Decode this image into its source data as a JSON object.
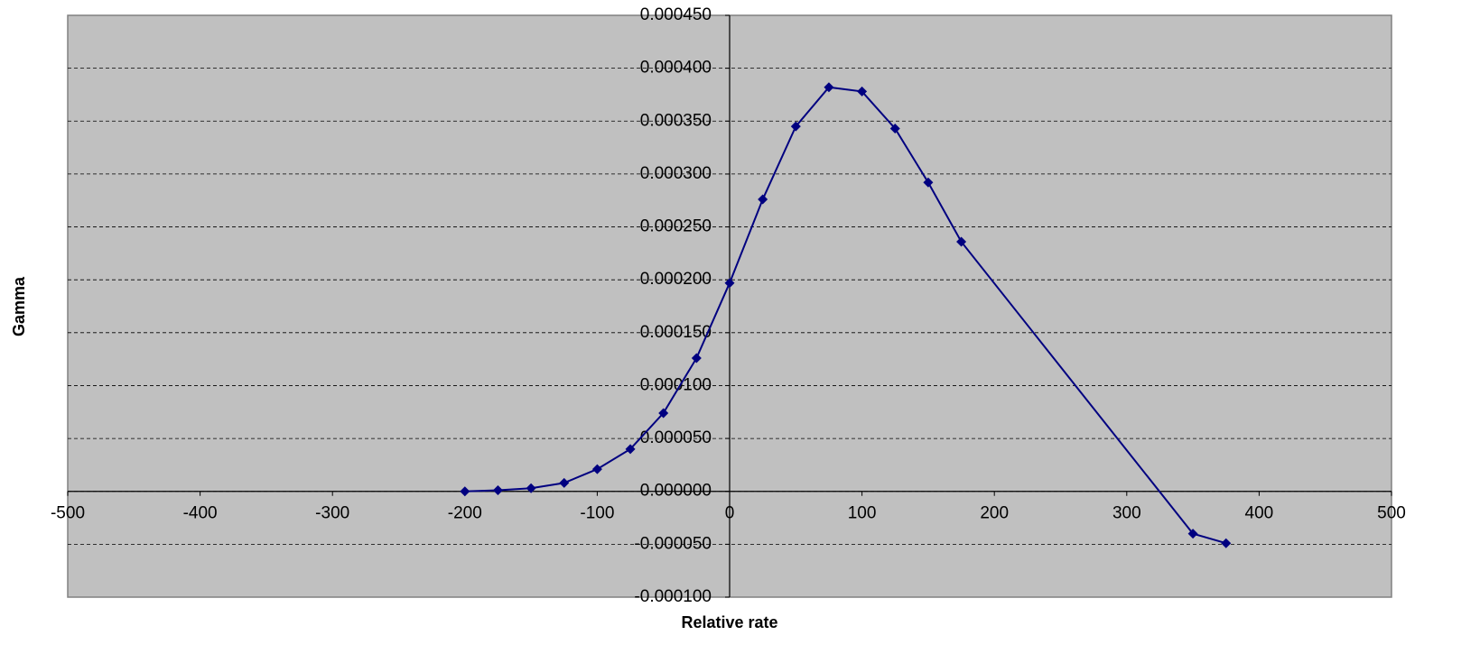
{
  "chart_data": {
    "type": "line",
    "xlabel": "Relative rate",
    "ylabel": "Gamma",
    "x": [
      -200,
      -175,
      -150,
      -125,
      -100,
      -75,
      -50,
      -25,
      0,
      25,
      50,
      75,
      100,
      125,
      150,
      175,
      350,
      375
    ],
    "values": [
      0.0,
      1e-06,
      3e-06,
      8e-06,
      2.1e-05,
      4e-05,
      7.4e-05,
      0.000126,
      0.000197,
      0.000276,
      0.000345,
      0.000382,
      0.000378,
      0.000343,
      0.000292,
      0.000236,
      -4e-05,
      -4.9e-05
    ],
    "color": "#000080",
    "xlim": [
      -500,
      500
    ],
    "xticks": [
      -500,
      -400,
      -300,
      -200,
      -100,
      0,
      100,
      200,
      300,
      400,
      500
    ],
    "ylim": [
      -0.0001,
      0.00045
    ],
    "yticks": [
      {
        "value": -0.0001,
        "label": "-0.000100"
      },
      {
        "value": -5e-05,
        "label": "-0.000050"
      },
      {
        "value": 0,
        "label": "0.000000"
      },
      {
        "value": 5e-05,
        "label": "0.000050"
      },
      {
        "value": 0.0001,
        "label": "0.000100"
      },
      {
        "value": 0.00015,
        "label": "0.000150"
      },
      {
        "value": 0.0002,
        "label": "0.000200"
      },
      {
        "value": 0.00025,
        "label": "0.000250"
      },
      {
        "value": 0.0003,
        "label": "0.000300"
      },
      {
        "value": 0.00035,
        "label": "0.000350"
      },
      {
        "value": 0.0004,
        "label": "0.000400"
      },
      {
        "value": 0.00045,
        "label": "0.000450"
      }
    ],
    "grid": true
  }
}
